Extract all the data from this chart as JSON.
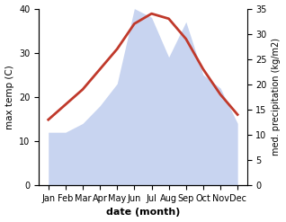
{
  "months": [
    "Jan",
    "Feb",
    "Mar",
    "Apr",
    "May",
    "Jun",
    "Jul",
    "Aug",
    "Sep",
    "Oct",
    "Nov",
    "Dec"
  ],
  "temperature": [
    13,
    16,
    19,
    23,
    27,
    32,
    34,
    33,
    29,
    23,
    18,
    14
  ],
  "precipitation": [
    12,
    12,
    14,
    18,
    23,
    40,
    38,
    29,
    37,
    25,
    22,
    14
  ],
  "temp_color": "#c0392b",
  "precip_color_fill": "#c8d4f0",
  "ylabel_left": "max temp (C)",
  "ylabel_right": "med. precipitation (kg/m2)",
  "xlabel": "date (month)",
  "ylim_left": [
    0,
    40
  ],
  "ylim_right": [
    0,
    35
  ],
  "yticks_left": [
    0,
    10,
    20,
    30,
    40
  ],
  "yticks_right": [
    0,
    5,
    10,
    15,
    20,
    25,
    30,
    35
  ],
  "temp_linewidth": 2.0,
  "bg_color": "#ffffff"
}
